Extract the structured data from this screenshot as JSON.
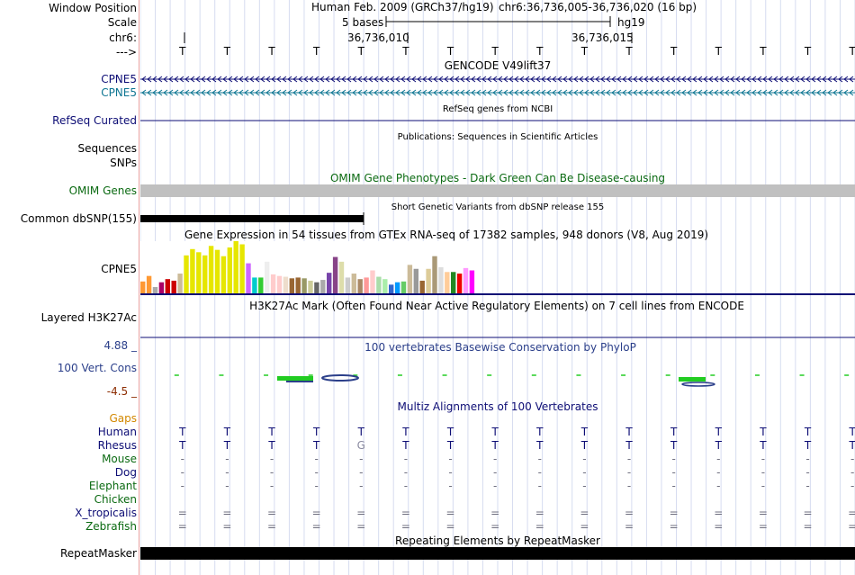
{
  "labels": {
    "window_position": "Window Position",
    "scale": "Scale",
    "chrom": "chr6:",
    "strand": "--->",
    "cpne5_a": "CPNE5",
    "cpne5_b": "CPNE5",
    "refseq": "RefSeq Curated",
    "sequences": "Sequences",
    "snps": "SNPs",
    "omim": "OMIM Genes",
    "dbsnp": "Common dbSNP(155)",
    "gtex_gene": "CPNE5",
    "h3k27ac": "Layered H3K27Ac",
    "cons_max": "4.88 _",
    "cons_name": "100 Vert. Cons",
    "cons_min": "-4.5 _",
    "gaps": "Gaps",
    "species": [
      {
        "name": "Human",
        "color": "#0d0d75"
      },
      {
        "name": "Rhesus",
        "color": "#0d0d75"
      },
      {
        "name": "Mouse",
        "color": "#0b6a12"
      },
      {
        "name": "Dog",
        "color": "#0d0d75"
      },
      {
        "name": "Elephant",
        "color": "#0b6a12"
      },
      {
        "name": "Chicken",
        "color": "#0b6a12"
      },
      {
        "name": "X_tropicalis",
        "color": "#0d0d75"
      },
      {
        "name": "Zebrafish",
        "color": "#0b6a12"
      }
    ],
    "repeatmasker": "RepeatMasker"
  },
  "header": {
    "assembly": "Human Feb. 2009 (GRCh37/hg19)",
    "position": "chr6:36,736,005-36,736,020 (16 bp)",
    "scale_text": "5 bases",
    "scale_db": "hg19",
    "coord_1": "36,736,010",
    "coord_2": "36,736,015",
    "bases": [
      "T",
      "T",
      "T",
      "T",
      "T",
      "T",
      "T",
      "T",
      "T",
      "T",
      "T",
      "T",
      "T",
      "T",
      "T",
      "T"
    ]
  },
  "tracks": {
    "gencode_title": "GENCODE V49lift37",
    "refseq_title": "RefSeq genes from NCBI",
    "pubs_title": "Publications: Sequences in Scientific Articles",
    "omim_title": "OMIM Gene Phenotypes - Dark Green Can Be Disease-causing",
    "dbsnp_title": "Short Genetic Variants from dbSNP release 155",
    "gtex_title": "Gene Expression in 54 tissues from GTEx RNA-seq of 17382 samples, 948 donors (V8, Aug 2019)",
    "h3k27ac_title": "H3K27Ac Mark (Often Found Near Active Regulatory Elements) on 7 cell lines from ENCODE",
    "phylop_title": "100 vertebrates Basewise Conservation by PhyloP",
    "multiz_title": "Multiz Alignments of 100 Vertebrates",
    "rmsk_title": "Repeating Elements by RepeatMasker"
  },
  "alignment": {
    "Human": [
      "T",
      "T",
      "T",
      "T",
      "T",
      "T",
      "T",
      "T",
      "T",
      "T",
      "T",
      "T",
      "T",
      "T",
      "T",
      "T"
    ],
    "Rhesus": [
      "T",
      "T",
      "T",
      "T",
      "G",
      "T",
      "T",
      "T",
      "T",
      "T",
      "T",
      "T",
      "T",
      "T",
      "T",
      "T"
    ],
    "Mouse": [
      "-",
      "-",
      "-",
      "-",
      "-",
      "-",
      "-",
      "-",
      "-",
      "-",
      "-",
      "-",
      "-",
      "-",
      "-",
      "-"
    ],
    "Dog": [
      "-",
      "-",
      "-",
      "-",
      "-",
      "-",
      "-",
      "-",
      "-",
      "-",
      "-",
      "-",
      "-",
      "-",
      "-",
      "-"
    ],
    "Elephant": [
      "-",
      "-",
      "-",
      "-",
      "-",
      "-",
      "-",
      "-",
      "-",
      "-",
      "-",
      "-",
      "-",
      "-",
      "-",
      "-"
    ],
    "Chicken": [
      "",
      "",
      "",
      "",
      "",
      "",
      "",
      "",
      "",
      "",
      "",
      "",
      "",
      "",
      "",
      ""
    ],
    "X_tropicalis": [
      "=",
      "=",
      "=",
      "=",
      "=",
      "=",
      "=",
      "=",
      "=",
      "=",
      "=",
      "=",
      "=",
      "=",
      "=",
      "="
    ],
    "Zebrafish": [
      "=",
      "=",
      "=",
      "=",
      "=",
      "=",
      "=",
      "=",
      "=",
      "=",
      "=",
      "=",
      "=",
      "=",
      "=",
      "="
    ]
  },
  "gtex": {
    "values": [
      15,
      22,
      8,
      14,
      18,
      16,
      25,
      48,
      56,
      52,
      48,
      60,
      55,
      47,
      58,
      66,
      62,
      38,
      20,
      20,
      40,
      24,
      22,
      21,
      19,
      20,
      19,
      16,
      14,
      17,
      26,
      46,
      40,
      20,
      25,
      18,
      20,
      29,
      21,
      18,
      11,
      14,
      15,
      36,
      31,
      16,
      31,
      47,
      33,
      27,
      27,
      25,
      32,
      29
    ],
    "colors": [
      "#ff9933",
      "#ff9933",
      "#aaaaaa",
      "#aa0066",
      "#cc0000",
      "#cc0000",
      "#ccbb99",
      "#e6e600",
      "#e6e600",
      "#e6e600",
      "#e6e600",
      "#e6e600",
      "#e6e600",
      "#e6e600",
      "#e6e600",
      "#e6e600",
      "#e6e600",
      "#cc66ff",
      "#00cccc",
      "#33cc33",
      "#eeeeee",
      "#ffcccc",
      "#ffcccc",
      "#eeddcc",
      "#996633",
      "#996633",
      "#999966",
      "#cccc99",
      "#666666",
      "#aaaaaa",
      "#7744aa",
      "#884488",
      "#ddddaa",
      "#cccccc",
      "#ccbb99",
      "#aa8866",
      "#ff9999",
      "#ffcccc",
      "#aaddaa",
      "#aaeeaa",
      "#3366cc",
      "#0099ff",
      "#66cc66",
      "#ccbb99",
      "#999999",
      "#996633",
      "#ddcc99",
      "#aa9977",
      "#dddddd",
      "#ffcc99",
      "#228822",
      "#ee0000",
      "#ff99ff",
      "#ff00ff"
    ]
  },
  "conservation": {
    "max": 4.88,
    "min": -4.5
  }
}
